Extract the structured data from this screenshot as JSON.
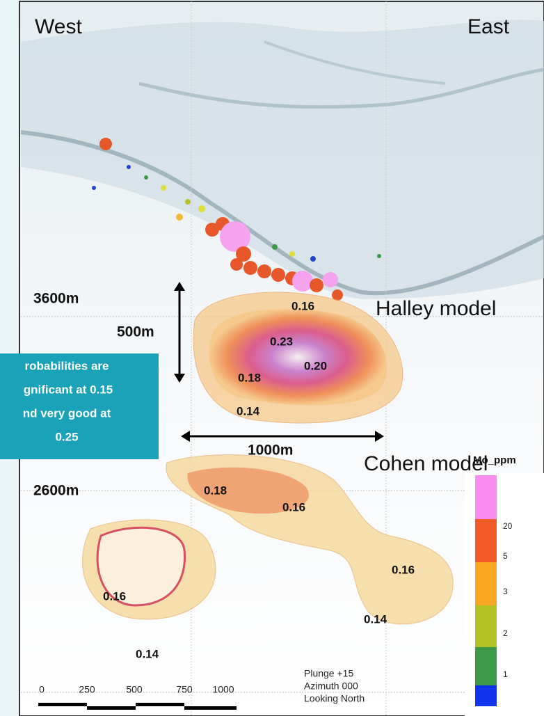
{
  "directions": {
    "west": "West",
    "east": "East"
  },
  "depths": [
    "3600m",
    "2600m"
  ],
  "dimensions": {
    "height": "500m",
    "width": "1000m"
  },
  "models": {
    "halley": "Halley model",
    "cohen": "Cohen model"
  },
  "callout": [
    "robabilities are",
    "gnificant at 0.15",
    "nd very good at",
    "0.25"
  ],
  "halley_labels": [
    "0.16",
    "0.23",
    "0.20",
    "0.18",
    "0.14"
  ],
  "cohen_labels": [
    "0.18",
    "0.16",
    "0.16",
    "0.16",
    "0.14",
    "0.14"
  ],
  "legend": {
    "title": "Mo_ppm",
    "ticks": [
      "20",
      "5",
      "3",
      "2",
      "1"
    ]
  },
  "scale_bar": [
    "0",
    "250",
    "500",
    "750",
    "1000"
  ],
  "view": [
    "Plunge +15",
    "Azimuth 000",
    "Looking North"
  ]
}
